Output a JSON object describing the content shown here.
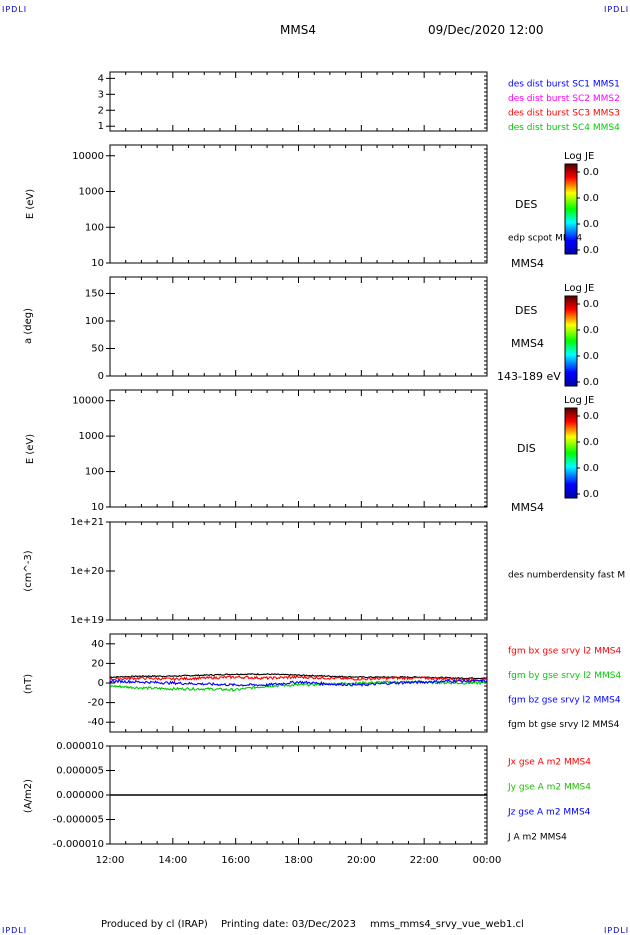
{
  "header": {
    "corner_label": "IPDLI",
    "spacecraft": "MMS4",
    "datetime": "09/Dec/2020 12:00"
  },
  "footer": {
    "produced_by": "Produced by cl (IRAP)",
    "printing_date": "Printing date: 03/Dec/2023",
    "filename": "mms_mms4_srvy_vue_web1.cl"
  },
  "colors": {
    "blue": "#0000ff",
    "magenta": "#ff00ff",
    "red": "#ff0000",
    "green": "#00cc00",
    "black": "#000000"
  },
  "time_axis": {
    "ticks": [
      "12:00",
      "14:00",
      "16:00",
      "18:00",
      "20:00",
      "22:00",
      "00:00"
    ]
  },
  "panel1": {
    "ticks": [
      "4",
      "3",
      "2",
      "1"
    ],
    "legend": [
      "des dist burst SC1 MMS1",
      "des dist burst SC2 MMS2",
      "des dist burst SC3 MMS3",
      "des dist burst SC4 MMS4"
    ]
  },
  "panel2": {
    "ylabel": "E (eV)",
    "ticks": [
      "10000",
      "1000",
      "100",
      "10"
    ],
    "instrument": "DES",
    "overlay": "edp scpot MMS4",
    "spacecraft": "MMS4",
    "colorbar": {
      "title": "Log JE",
      "ticks": [
        "0.0",
        "0.0",
        "0.0",
        "0.0"
      ]
    }
  },
  "panel3": {
    "ylabel": "a (deg)",
    "ticks": [
      "150",
      "100",
      "50",
      "0"
    ],
    "instrument": "DES",
    "spacecraft": "MMS4",
    "energy_range": "143-189 eV",
    "colorbar": {
      "title": "Log JE",
      "ticks": [
        "0.0",
        "0.0",
        "0.0",
        "0.0"
      ]
    }
  },
  "panel4": {
    "ylabel": "E (eV)",
    "ticks": [
      "10000",
      "1000",
      "100",
      "10"
    ],
    "instrument": "DIS",
    "spacecraft": "MMS4",
    "colorbar": {
      "title": "Log JE",
      "ticks": [
        "0.0",
        "0.0",
        "0.0",
        "0.0"
      ]
    }
  },
  "panel5": {
    "ylabel": "(cm^-3)",
    "ticks": [
      "1e+21",
      "1e+20",
      "1e+19"
    ],
    "legend": "des numberdensity fast M"
  },
  "panel6": {
    "ylabel": "(nT)",
    "ticks": [
      "40",
      "20",
      "0",
      "-20",
      "-40"
    ],
    "legend": [
      "fgm bx gse srvy l2 MMS4",
      "fgm by gse srvy l2 MMS4",
      "fgm bz gse srvy l2 MMS4",
      "fgm bt gse srvy l2 MMS4"
    ]
  },
  "panel7": {
    "ylabel": "(A/m2)",
    "ticks": [
      "0.000010",
      "0.000005",
      "0.000000",
      "-0.000005",
      "-0.000010"
    ],
    "legend": [
      "Jx gse A m2 MMS4",
      "Jy gse A m2 MMS4",
      "Jz gse A m2 MMS4",
      "J A m2 MMS4"
    ]
  },
  "chart_data": [
    {
      "type": "heatmap",
      "panel": 1,
      "yticks": [
        4,
        3,
        2,
        1
      ],
      "ylim": [
        0.7,
        4.4
      ],
      "values": []
    },
    {
      "type": "heatmap",
      "panel": 2,
      "ylabel": "E (eV)",
      "yscale": "log",
      "ylim": [
        10,
        20000
      ],
      "yticks": [
        10000,
        1000,
        100,
        10
      ],
      "values": []
    },
    {
      "type": "heatmap",
      "panel": 3,
      "ylabel": "a (deg)",
      "ylim": [
        0,
        180
      ],
      "yticks": [
        150,
        100,
        50,
        0
      ],
      "values": []
    },
    {
      "type": "heatmap",
      "panel": 4,
      "ylabel": "E (eV)",
      "yscale": "log",
      "ylim": [
        10,
        20000
      ],
      "yticks": [
        10000,
        1000,
        100,
        10
      ],
      "values": []
    },
    {
      "type": "line",
      "panel": 5,
      "ylabel": "(cm^-3)",
      "yscale": "log",
      "ylim": [
        1e+19,
        1e+21
      ],
      "values": []
    },
    {
      "type": "line",
      "panel": 6,
      "ylabel": "(nT)",
      "ylim": [
        -50,
        50
      ],
      "x": [
        12,
        13,
        14,
        15,
        16,
        17,
        18,
        19,
        20,
        21,
        22,
        23,
        24
      ],
      "series": [
        {
          "name": "fgm bx gse srvy l2 MMS4",
          "color": "#ff0000",
          "values": [
            4,
            5,
            4,
            5,
            6,
            5,
            6,
            5,
            4,
            5,
            5,
            4,
            3
          ]
        },
        {
          "name": "fgm by gse srvy l2 MMS4",
          "color": "#00cc00",
          "values": [
            -3,
            -5,
            -6,
            -6,
            -7,
            -3,
            -2,
            -1,
            0,
            1,
            1,
            0,
            0
          ]
        },
        {
          "name": "fgm bz gse srvy l2 MMS4",
          "color": "#0000ff",
          "values": [
            2,
            1,
            0,
            -1,
            -2,
            -2,
            1,
            -1,
            -2,
            0,
            1,
            2,
            2
          ]
        },
        {
          "name": "fgm bt gse srvy l2 MMS4",
          "color": "#000000",
          "values": [
            6,
            7,
            7,
            8,
            9,
            9,
            8,
            7,
            6,
            6,
            6,
            5,
            5
          ]
        }
      ]
    },
    {
      "type": "line",
      "panel": 7,
      "ylabel": "(A/m2)",
      "ylim": [
        -1e-05,
        1e-05
      ],
      "x": [
        12,
        24
      ],
      "series": [
        {
          "name": "J A m2 MMS4",
          "color": "#000000",
          "values": [
            0,
            0
          ]
        }
      ]
    }
  ]
}
